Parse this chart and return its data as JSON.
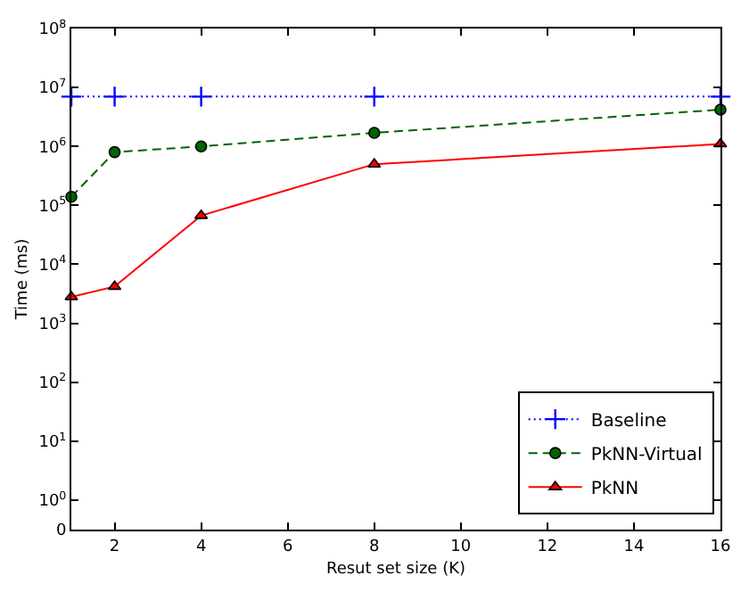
{
  "chart_data": {
    "type": "line",
    "xlabel": "Resut set size (K)",
    "ylabel": "Time (ms)",
    "x": [
      1,
      2,
      4,
      8,
      16
    ],
    "series": [
      {
        "name": "Baseline",
        "color": "#0000ff",
        "values": [
          7000000,
          7000000,
          7000000,
          7000000,
          7000000
        ],
        "marker": "cross",
        "line_style": "dotted"
      },
      {
        "name": "PkNN-Virtual",
        "color": "#006400",
        "values": [
          140000,
          800000,
          1000000,
          1700000,
          4200000
        ],
        "marker": "circle",
        "line_style": "dashed"
      },
      {
        "name": "PkNN",
        "color": "#ff0000",
        "values": [
          2800,
          4200,
          67000,
          500000,
          1100000
        ],
        "marker": "triangle",
        "line_style": "solid"
      }
    ],
    "xlim": [
      1,
      16
    ],
    "xticks": [
      2,
      4,
      6,
      8,
      10,
      12,
      14,
      16
    ],
    "ylim": [
      0,
      100000000
    ],
    "yticks": [
      0,
      {
        "value": 1,
        "label": "10$^{0}$"
      },
      {
        "value": 10,
        "label": "10$^{1}$"
      },
      {
        "value": 100,
        "label": "10$^{2}$"
      },
      {
        "value": 1000,
        "label": "10$^{3}$"
      },
      {
        "value": 10000,
        "label": "10$^{4}$"
      },
      {
        "value": 100000,
        "label": "10$^{5}$"
      },
      {
        "value": 1000000,
        "label": "10$^{6}$"
      },
      {
        "value": 10000000,
        "label": "10$^{7}$"
      },
      {
        "value": 100000000,
        "label": "10$^{8}$"
      }
    ],
    "log": "y",
    "legend": "bottom right"
  }
}
